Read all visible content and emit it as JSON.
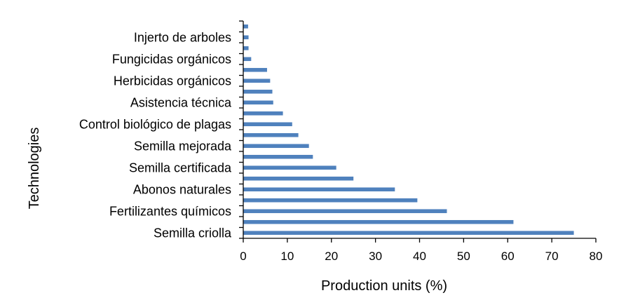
{
  "chart_data": {
    "type": "bar",
    "orientation": "horizontal",
    "title": "",
    "xlabel": "Production units (%)",
    "ylabel": "Technologies",
    "xlim": [
      0,
      80
    ],
    "xticks": [
      "0",
      "10",
      "20",
      "30",
      "40",
      "50",
      "60",
      "70",
      "80"
    ],
    "grid": false,
    "bar_color": "#4f81bd",
    "categories": [
      "Semilla criolla",
      "",
      "Fertilizantes químicos",
      "",
      "Abonos naturales",
      "",
      "Semilla certificada",
      "",
      "Semilla mejorada",
      "",
      "Control biológico de plagas",
      "",
      "Asistencia técnica",
      "",
      "Herbicidas orgánicos",
      "",
      "Fungicidas orgánicos",
      "",
      "Injerto de arboles",
      ""
    ],
    "values": [
      75,
      61.3,
      46.2,
      39.5,
      34.4,
      25,
      21.1,
      15.8,
      14.9,
      12.5,
      11.1,
      9,
      6.8,
      6.6,
      6.1,
      5.4,
      1.8,
      1.2,
      1.2,
      1.1
    ]
  }
}
